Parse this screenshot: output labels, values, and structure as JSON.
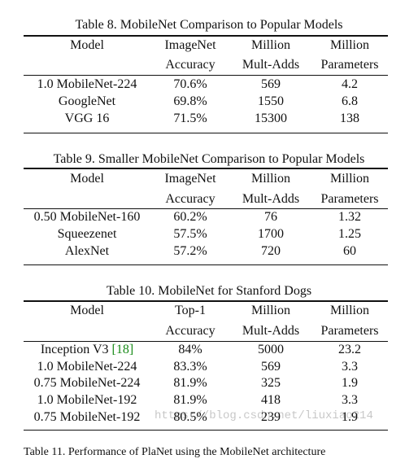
{
  "tables": [
    {
      "caption": "Table 8. MobileNet Comparison to Popular Models",
      "header_top": [
        "Model",
        "ImageNet",
        "Million",
        "Million"
      ],
      "header_bottom": [
        "",
        "Accuracy",
        "Mult-Adds",
        "Parameters"
      ],
      "rows": [
        [
          "1.0 MobileNet-224",
          "70.6%",
          "569",
          "4.2"
        ],
        [
          "GoogleNet",
          "69.8%",
          "1550",
          "6.8"
        ],
        [
          "VGG 16",
          "71.5%",
          "15300",
          "138"
        ]
      ]
    },
    {
      "caption": "Table 9. Smaller MobileNet Comparison to Popular Models",
      "header_top": [
        "Model",
        "ImageNet",
        "Million",
        "Million"
      ],
      "header_bottom": [
        "",
        "Accuracy",
        "Mult-Adds",
        "Parameters"
      ],
      "rows": [
        [
          "0.50 MobileNet-160",
          "60.2%",
          "76",
          "1.32"
        ],
        [
          "Squeezenet",
          "57.5%",
          "1700",
          "1.25"
        ],
        [
          "AlexNet",
          "57.2%",
          "720",
          "60"
        ]
      ]
    },
    {
      "caption": "Table 10. MobileNet for Stanford Dogs",
      "header_top": [
        "Model",
        "Top-1",
        "Million",
        "Million"
      ],
      "header_bottom": [
        "",
        "Accuracy",
        "Mult-Adds",
        "Parameters"
      ],
      "rows": [
        [
          "Inception V3",
          "84%",
          "5000",
          "23.2"
        ],
        [
          "1.0 MobileNet-224",
          "83.3%",
          "569",
          "3.3"
        ],
        [
          "0.75 MobileNet-224",
          "81.9%",
          "325",
          "1.9"
        ],
        [
          "1.0 MobileNet-192",
          "81.9%",
          "418",
          "3.3"
        ],
        [
          "0.75 MobileNet-192",
          "80.5%",
          "239",
          "1.9"
        ]
      ],
      "citation": "[18]"
    }
  ],
  "watermark": "https://blog.csdn.net/liuxiao214",
  "partial_caption": "Table 11. Performance of PlaNet using the MobileNet architecture"
}
